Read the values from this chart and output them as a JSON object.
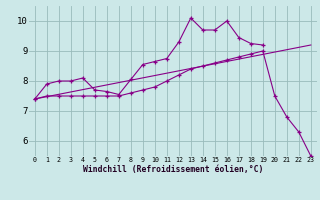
{
  "background_color": "#cce8e8",
  "line_color": "#880088",
  "grid_color": "#99bbbb",
  "xlabel": "Windchill (Refroidissement éolien,°C)",
  "xlim": [
    -0.5,
    23.5
  ],
  "ylim": [
    5.5,
    10.5
  ],
  "yticks": [
    6,
    7,
    8,
    9,
    10
  ],
  "xticks": [
    0,
    1,
    2,
    3,
    4,
    5,
    6,
    7,
    8,
    9,
    10,
    11,
    12,
    13,
    14,
    15,
    16,
    17,
    18,
    19,
    20,
    21,
    22,
    23
  ],
  "series1_x": [
    0,
    1,
    2,
    3,
    4,
    5,
    6,
    7,
    8,
    9,
    10,
    11,
    12,
    13,
    14,
    15,
    16,
    17,
    18,
    19
  ],
  "series1_y": [
    7.4,
    7.9,
    8.0,
    8.0,
    8.1,
    7.7,
    7.65,
    7.55,
    8.05,
    8.55,
    8.65,
    8.75,
    9.3,
    10.1,
    9.7,
    9.7,
    10.0,
    9.45,
    9.25,
    9.2
  ],
  "series2_x": [
    0,
    1,
    2,
    3,
    4,
    5,
    6,
    7,
    8,
    9,
    10,
    11,
    12,
    13,
    14,
    15,
    16,
    17,
    18,
    19,
    20,
    21,
    22,
    23
  ],
  "series2_y": [
    7.4,
    7.5,
    7.5,
    7.5,
    7.5,
    7.5,
    7.5,
    7.5,
    7.6,
    7.7,
    7.8,
    8.0,
    8.2,
    8.4,
    8.5,
    8.6,
    8.7,
    8.8,
    8.9,
    9.0,
    7.5,
    6.8,
    6.3,
    5.5
  ],
  "series3_x": [
    0,
    23
  ],
  "series3_y": [
    7.4,
    9.2
  ]
}
